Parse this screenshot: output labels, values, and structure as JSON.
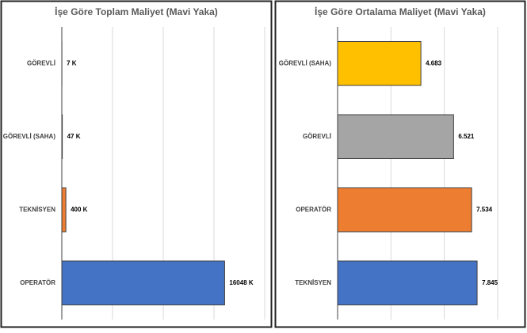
{
  "chart_data": [
    {
      "type": "bar",
      "orientation": "horizontal",
      "title": "İşe Göre Toplam Maliyet (Mavi Yaka)",
      "categories": [
        "GÖREVLİ",
        "GÖREVLİ (SAHA)",
        "TEKNİSYEN",
        "OPERATÖR"
      ],
      "values": [
        7,
        47,
        400,
        16048
      ],
      "value_labels": [
        "7 K",
        "47 K",
        "400 K",
        "16048 K"
      ],
      "colors": [
        "#a5a5a5",
        "#ffc000",
        "#ed7d31",
        "#4472c4"
      ],
      "xlim": [
        0,
        20000
      ],
      "xticks": [
        0,
        5000,
        10000,
        15000,
        20000
      ],
      "grid": true
    },
    {
      "type": "bar",
      "orientation": "horizontal",
      "title": "İşe Göre Ortalama Maliyet (Mavi Yaka)",
      "categories": [
        "GÖREVLİ (SAHA)",
        "GÖREVLİ",
        "OPERATÖR",
        "TEKNİSYEN"
      ],
      "values": [
        4.683,
        6.521,
        7.534,
        7.845
      ],
      "colors": [
        "#ffc000",
        "#a5a5a5",
        "#ed7d31",
        "#4472c4"
      ],
      "xlim": [
        0,
        9
      ],
      "xticks": [
        0,
        3,
        6,
        9
      ],
      "grid": true
    }
  ]
}
